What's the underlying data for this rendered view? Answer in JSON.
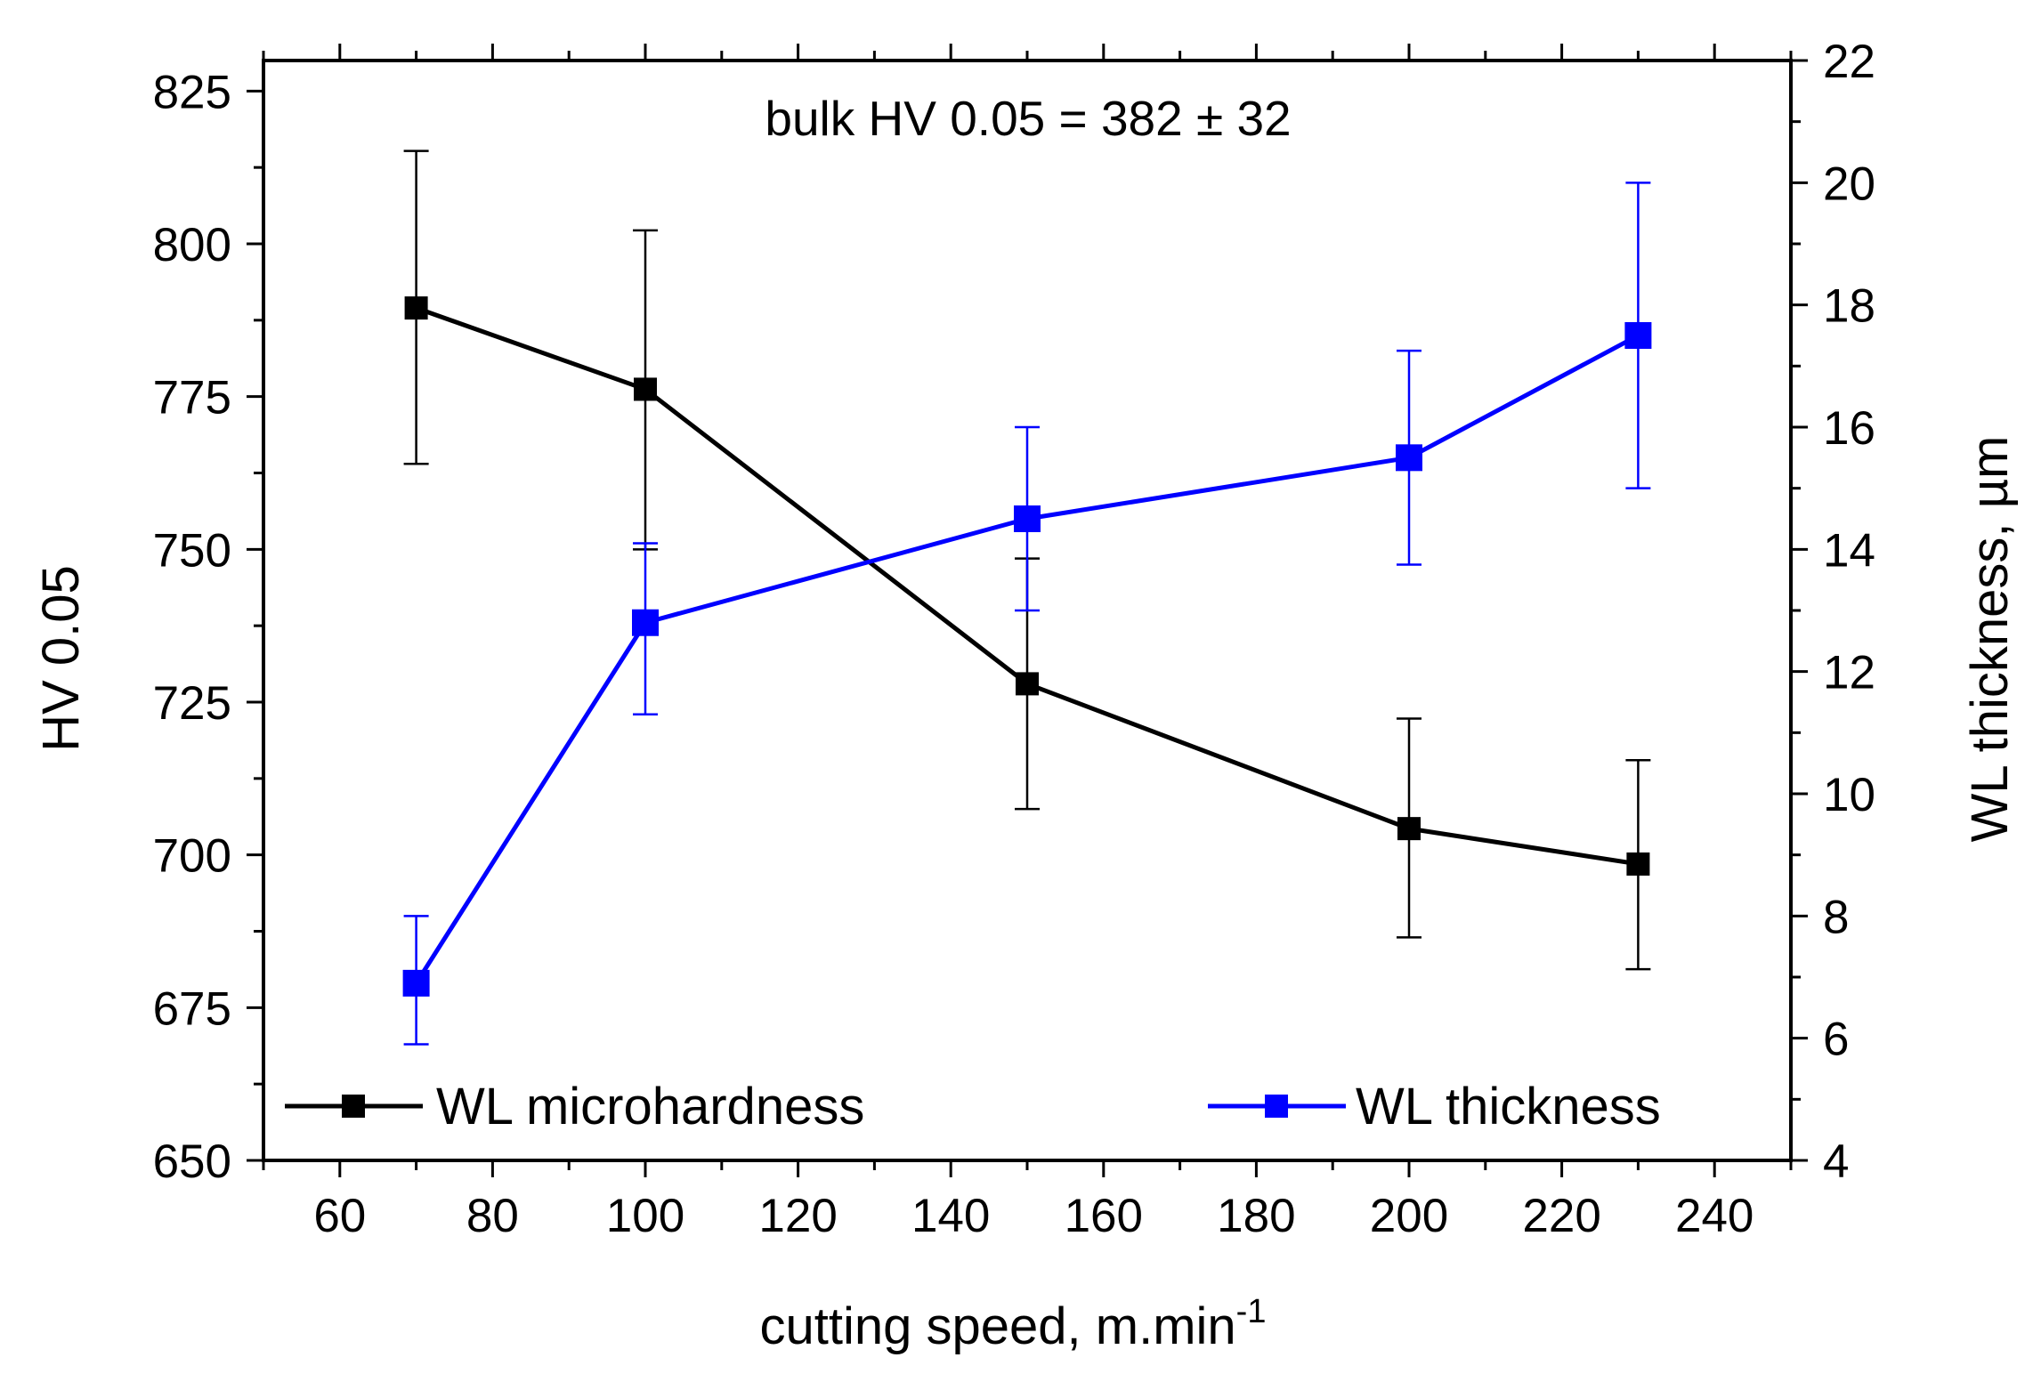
{
  "chart_data": {
    "type": "line",
    "title": "",
    "annotation": "bulk HV 0.05 = 382 ± 32",
    "xlabel": "cutting speed, m.min",
    "xlabel_superscript": "-1",
    "ylabel": "HV 0.05",
    "y2label": "WL thickness, µm",
    "xlim": [
      50,
      250
    ],
    "ylim": [
      650,
      830
    ],
    "y2lim": [
      4,
      22
    ],
    "x_ticks": [
      60,
      80,
      100,
      120,
      140,
      160,
      180,
      200,
      220,
      240
    ],
    "y_ticks": [
      650,
      675,
      700,
      725,
      750,
      775,
      800,
      825
    ],
    "y2_ticks": [
      4,
      6,
      8,
      10,
      12,
      14,
      16,
      18,
      20,
      22
    ],
    "legend_position": "bottom",
    "series": [
      {
        "name": "WL microhardness",
        "axis": "left",
        "color": "#000000",
        "x": [
          70,
          100,
          150,
          200,
          230
        ],
        "values": [
          789.5,
          776.2,
          728.0,
          704.3,
          698.5
        ],
        "err_low": [
          764.0,
          750.0,
          707.5,
          686.5,
          681.3
        ],
        "err_high": [
          815.2,
          802.2,
          748.5,
          722.3,
          715.5
        ]
      },
      {
        "name": "WL thickness",
        "axis": "right",
        "color": "#0000ff",
        "x": [
          70,
          100,
          150,
          200,
          230
        ],
        "values": [
          6.9,
          12.8,
          14.5,
          15.5,
          17.5
        ],
        "err_low": [
          5.9,
          11.3,
          13.0,
          13.75,
          15.0
        ],
        "err_high": [
          8.0,
          14.1,
          16.0,
          17.25,
          20.0
        ]
      }
    ]
  }
}
